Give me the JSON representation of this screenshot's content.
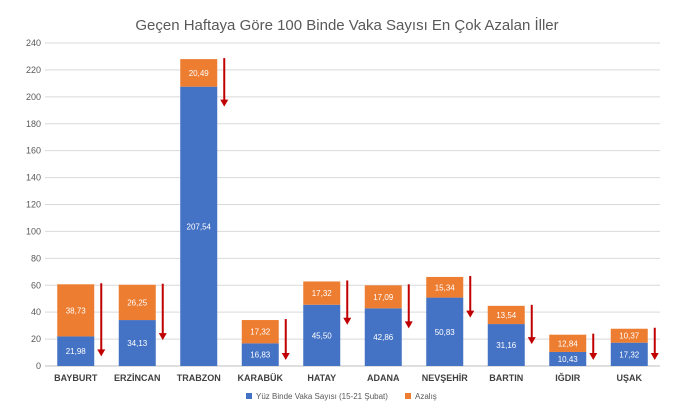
{
  "chart_data": {
    "type": "bar",
    "stacked": true,
    "title": "Geçen Haftaya Göre 100 Binde Vaka Sayısı En Çok Azalan İller",
    "categories": [
      "BAYBURT",
      "ERZİNCAN",
      "TRABZON",
      "KARABÜK",
      "HATAY",
      "ADANA",
      "NEVŞEHİR",
      "BARTIN",
      "IĞDIR",
      "UŞAK"
    ],
    "series": [
      {
        "name": "Yüz Binde Vaka Sayısı (15-21 Şubat)",
        "color": "#4472C4",
        "values": [
          21.98,
          34.13,
          207.54,
          16.83,
          45.5,
          42.86,
          50.83,
          31.16,
          10.43,
          17.32
        ],
        "labels": [
          "21,98",
          "34,13",
          "207,54",
          "16,83",
          "45,50",
          "42,86",
          "50,83",
          "31,16",
          "10,43",
          "17,32"
        ]
      },
      {
        "name": "Azalış",
        "color": "#ED7D31",
        "values": [
          38.73,
          26.25,
          20.49,
          17.32,
          17.32,
          17.09,
          15.34,
          13.54,
          12.84,
          10.37
        ],
        "labels": [
          "38,73",
          "26,25",
          "20,49",
          "17,32",
          "17,32",
          "17,09",
          "15,34",
          "13,54",
          "12,84",
          "10,37"
        ]
      }
    ],
    "ylim": [
      0,
      240
    ],
    "yticks": [
      "0",
      "20",
      "40",
      "60",
      "80",
      "100",
      "120",
      "140",
      "160",
      "180",
      "200",
      "220",
      "240"
    ],
    "grid": true,
    "legend": "bottom",
    "arrow_color": "#C00000"
  }
}
